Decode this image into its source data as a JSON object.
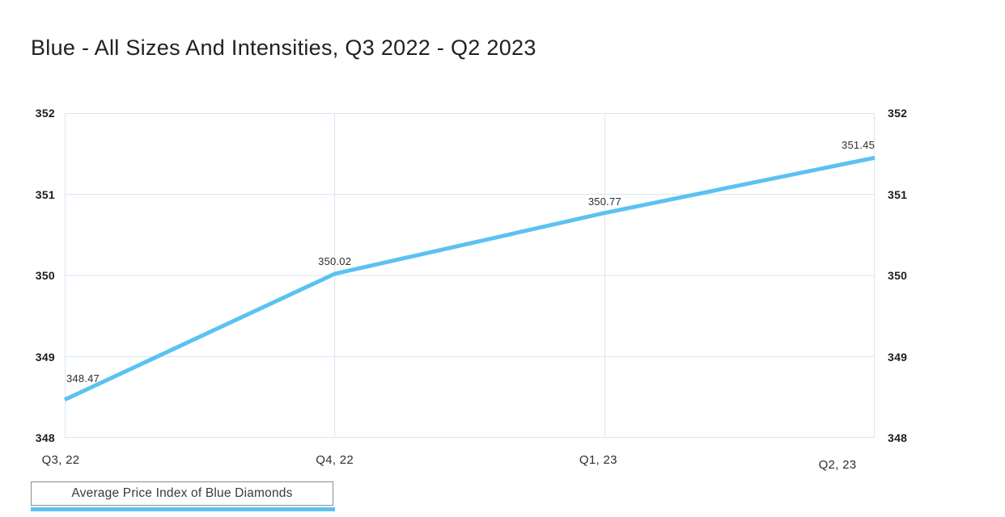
{
  "title": "Blue - All Sizes And Intensities, Q3 2022 - Q2 2023",
  "legend": {
    "label": "Average Price Index of Blue Diamonds"
  },
  "colors": {
    "line": "#5BC2F1",
    "grid": "#d9e6f3",
    "title_text": "#212121",
    "axis_text": "#1c1c1c",
    "legend_border": "#8b8b8b"
  },
  "chart_data": {
    "type": "line",
    "title": "Blue - All Sizes And Intensities, Q3 2022 - Q2 2023",
    "categories": [
      "Q3, 22",
      "Q4, 22",
      "Q1, 23",
      "Q2, 23"
    ],
    "series": [
      {
        "name": "Average Price Index of Blue Diamonds",
        "values": [
          348.47,
          350.02,
          350.77,
          351.45
        ]
      }
    ],
    "point_labels": [
      "348.47",
      "350.02",
      "350.77",
      "351.45"
    ],
    "xlabel": "",
    "ylabel": "",
    "ylim": [
      348,
      352
    ],
    "yticks": [
      352,
      351,
      350,
      349,
      348
    ],
    "y_axis_sides": [
      "left",
      "right"
    ],
    "grid": true,
    "legend_position": "bottom-left"
  }
}
